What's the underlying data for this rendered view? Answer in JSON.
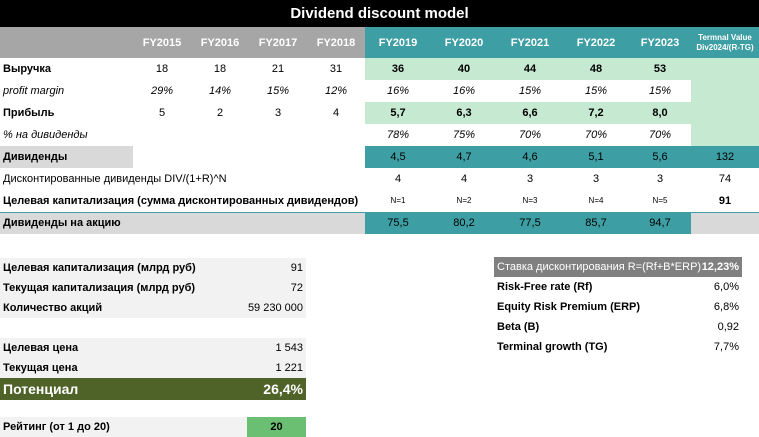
{
  "title": "Dividend discount model",
  "years": [
    "FY2015",
    "FY2016",
    "FY2017",
    "FY2018",
    "FY2019",
    "FY2020",
    "FY2021",
    "FY2022",
    "FY2023"
  ],
  "terminal_header": [
    "Termnal Value",
    "Div2024/(R-TG)"
  ],
  "rows": {
    "revenue": {
      "label": "Выручка",
      "values": [
        "18",
        "18",
        "21",
        "31",
        "36",
        "40",
        "44",
        "48",
        "53"
      ]
    },
    "profit_margin": {
      "label": "profit margin",
      "values": [
        "29%",
        "14%",
        "15%",
        "12%",
        "16%",
        "16%",
        "15%",
        "15%",
        "15%"
      ]
    },
    "profit": {
      "label": "Прибыль",
      "values": [
        "5",
        "2",
        "3",
        "4",
        "5,7",
        "6,3",
        "6,6",
        "7,2",
        "8,0"
      ]
    },
    "payout": {
      "label": "% на дивиденды",
      "values": [
        "",
        "",
        "",
        "",
        "78%",
        "75%",
        "70%",
        "70%",
        "70%"
      ]
    },
    "dividends": {
      "label": "Дивиденды",
      "values": [
        "4,5",
        "4,7",
        "4,6",
        "5,1",
        "5,6"
      ],
      "terminal": "132"
    },
    "discounted": {
      "label": "Дисконтированные дивиденды DIV/(1+R)^N",
      "values": [
        "4",
        "4",
        "3",
        "3",
        "3"
      ],
      "terminal": "74"
    },
    "target_cap": {
      "label": "Целевая капитализация (сумма дисконтированных дивидендов)",
      "n_labels": [
        "N=1",
        "N=2",
        "N=3",
        "N=4",
        "N=5"
      ],
      "terminal": "91"
    },
    "dps": {
      "label": "Дивиденды на акцию",
      "values": [
        "75,5",
        "80,2",
        "77,5",
        "85,7",
        "94,7"
      ]
    }
  },
  "left_panel": {
    "target_cap": {
      "label": "Целевая капитализация (млрд руб)",
      "value": "91"
    },
    "current_cap": {
      "label": "Текущая капитализация (млрд руб)",
      "value": "72"
    },
    "shares": {
      "label": "Количество акций",
      "value": "59 230 000"
    },
    "target_price": {
      "label": "Целевая цена",
      "value": "1 543"
    },
    "current_price": {
      "label": "Текущая цена",
      "value": "1 221"
    },
    "potential": {
      "label": "Потенциал",
      "value": "26,4%"
    },
    "rating": {
      "label": "Рейтинг (от 1 до 20)",
      "value": "20"
    }
  },
  "right_panel": {
    "discount_rate": {
      "label": "Ставка дисконтирования R=(Rf+B*ERP)",
      "value": "12,23%"
    },
    "rf": {
      "label": "Risk-Free rate (Rf)",
      "value": "6,0%"
    },
    "erp": {
      "label": "Equity Risk Premium (ERP)",
      "value": "6,8%"
    },
    "beta": {
      "label": "Beta (B)",
      "value": "0,92"
    },
    "tg": {
      "label": "Terminal growth (TG)",
      "value": "7,7%"
    }
  }
}
